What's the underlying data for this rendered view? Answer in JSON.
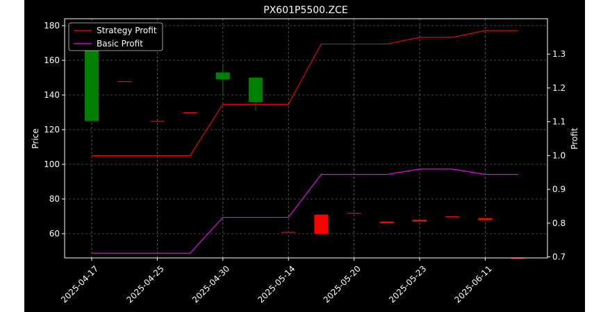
{
  "chart_data": {
    "type": "line",
    "title": "PX601P5500.ZCE",
    "xlabel": "",
    "ylabel_left": "Price",
    "ylabel_right": "Profit",
    "x_tick_labels": [
      "2025-04-17",
      "2025-04-25",
      "2025-04-30",
      "2025-05-14",
      "2025-05-20",
      "2025-05-23",
      "2025-06-11"
    ],
    "y_left_ticks": [
      60,
      80,
      100,
      120,
      140,
      160,
      180
    ],
    "y_right_ticks": [
      0.7,
      0.8,
      0.9,
      1.0,
      1.1,
      1.2,
      1.3
    ],
    "ylim_left": [
      46,
      184
    ],
    "ylim_right": [
      0.697,
      1.405
    ],
    "grid": true,
    "legend_position": "upper-left",
    "candles": [
      {
        "open": 125,
        "close": 177,
        "high": 177,
        "low": 125,
        "color": "#008000"
      },
      {
        "open": 148,
        "close": 148,
        "high": 148,
        "low": 148,
        "color": "#ff0000"
      },
      {
        "open": 125,
        "close": 125,
        "high": 125,
        "low": 125,
        "color": "#ff0000"
      },
      {
        "open": 130,
        "close": 130,
        "high": 130,
        "low": 130,
        "color": "#ff0000"
      },
      {
        "open": 149,
        "close": 153,
        "high": 158,
        "low": 141,
        "color": "#008000"
      },
      {
        "open": 136,
        "close": 150,
        "high": 150,
        "low": 131,
        "color": "#008000"
      },
      {
        "open": 61,
        "close": 61,
        "high": 61,
        "low": 61,
        "color": "#ff0000"
      },
      {
        "open": 71,
        "close": 60,
        "high": 71,
        "low": 60,
        "color": "#ff0000"
      },
      {
        "open": 72,
        "close": 72,
        "high": 72,
        "low": 72,
        "color": "#ff0000"
      },
      {
        "open": 67,
        "close": 66,
        "high": 67,
        "low": 66,
        "color": "#ff0000"
      },
      {
        "open": 68,
        "close": 67,
        "high": 68,
        "low": 67,
        "color": "#ff0000"
      },
      {
        "open": 70,
        "close": 70,
        "high": 70,
        "low": 70,
        "color": "#ff0000"
      },
      {
        "open": 69,
        "close": 68,
        "high": 69,
        "low": 67,
        "color": "#ff0000"
      },
      {
        "open": 46,
        "close": 46,
        "high": 46,
        "low": 46,
        "color": "#ff0000"
      }
    ],
    "series": [
      {
        "name": "Strategy Profit",
        "axis": "right",
        "color": "#ff0000",
        "values": [
          1.0,
          1.0,
          1.0,
          1.0,
          1.152,
          1.152,
          1.152,
          1.33,
          1.33,
          1.33,
          1.35,
          1.35,
          1.37,
          1.37
        ]
      },
      {
        "name": "Basic Profit",
        "axis": "right",
        "color": "#ff00ff",
        "values": [
          0.711,
          0.711,
          0.711,
          0.711,
          0.817,
          0.817,
          0.817,
          0.944,
          0.944,
          0.944,
          0.96,
          0.96,
          0.944,
          0.944
        ]
      }
    ]
  }
}
